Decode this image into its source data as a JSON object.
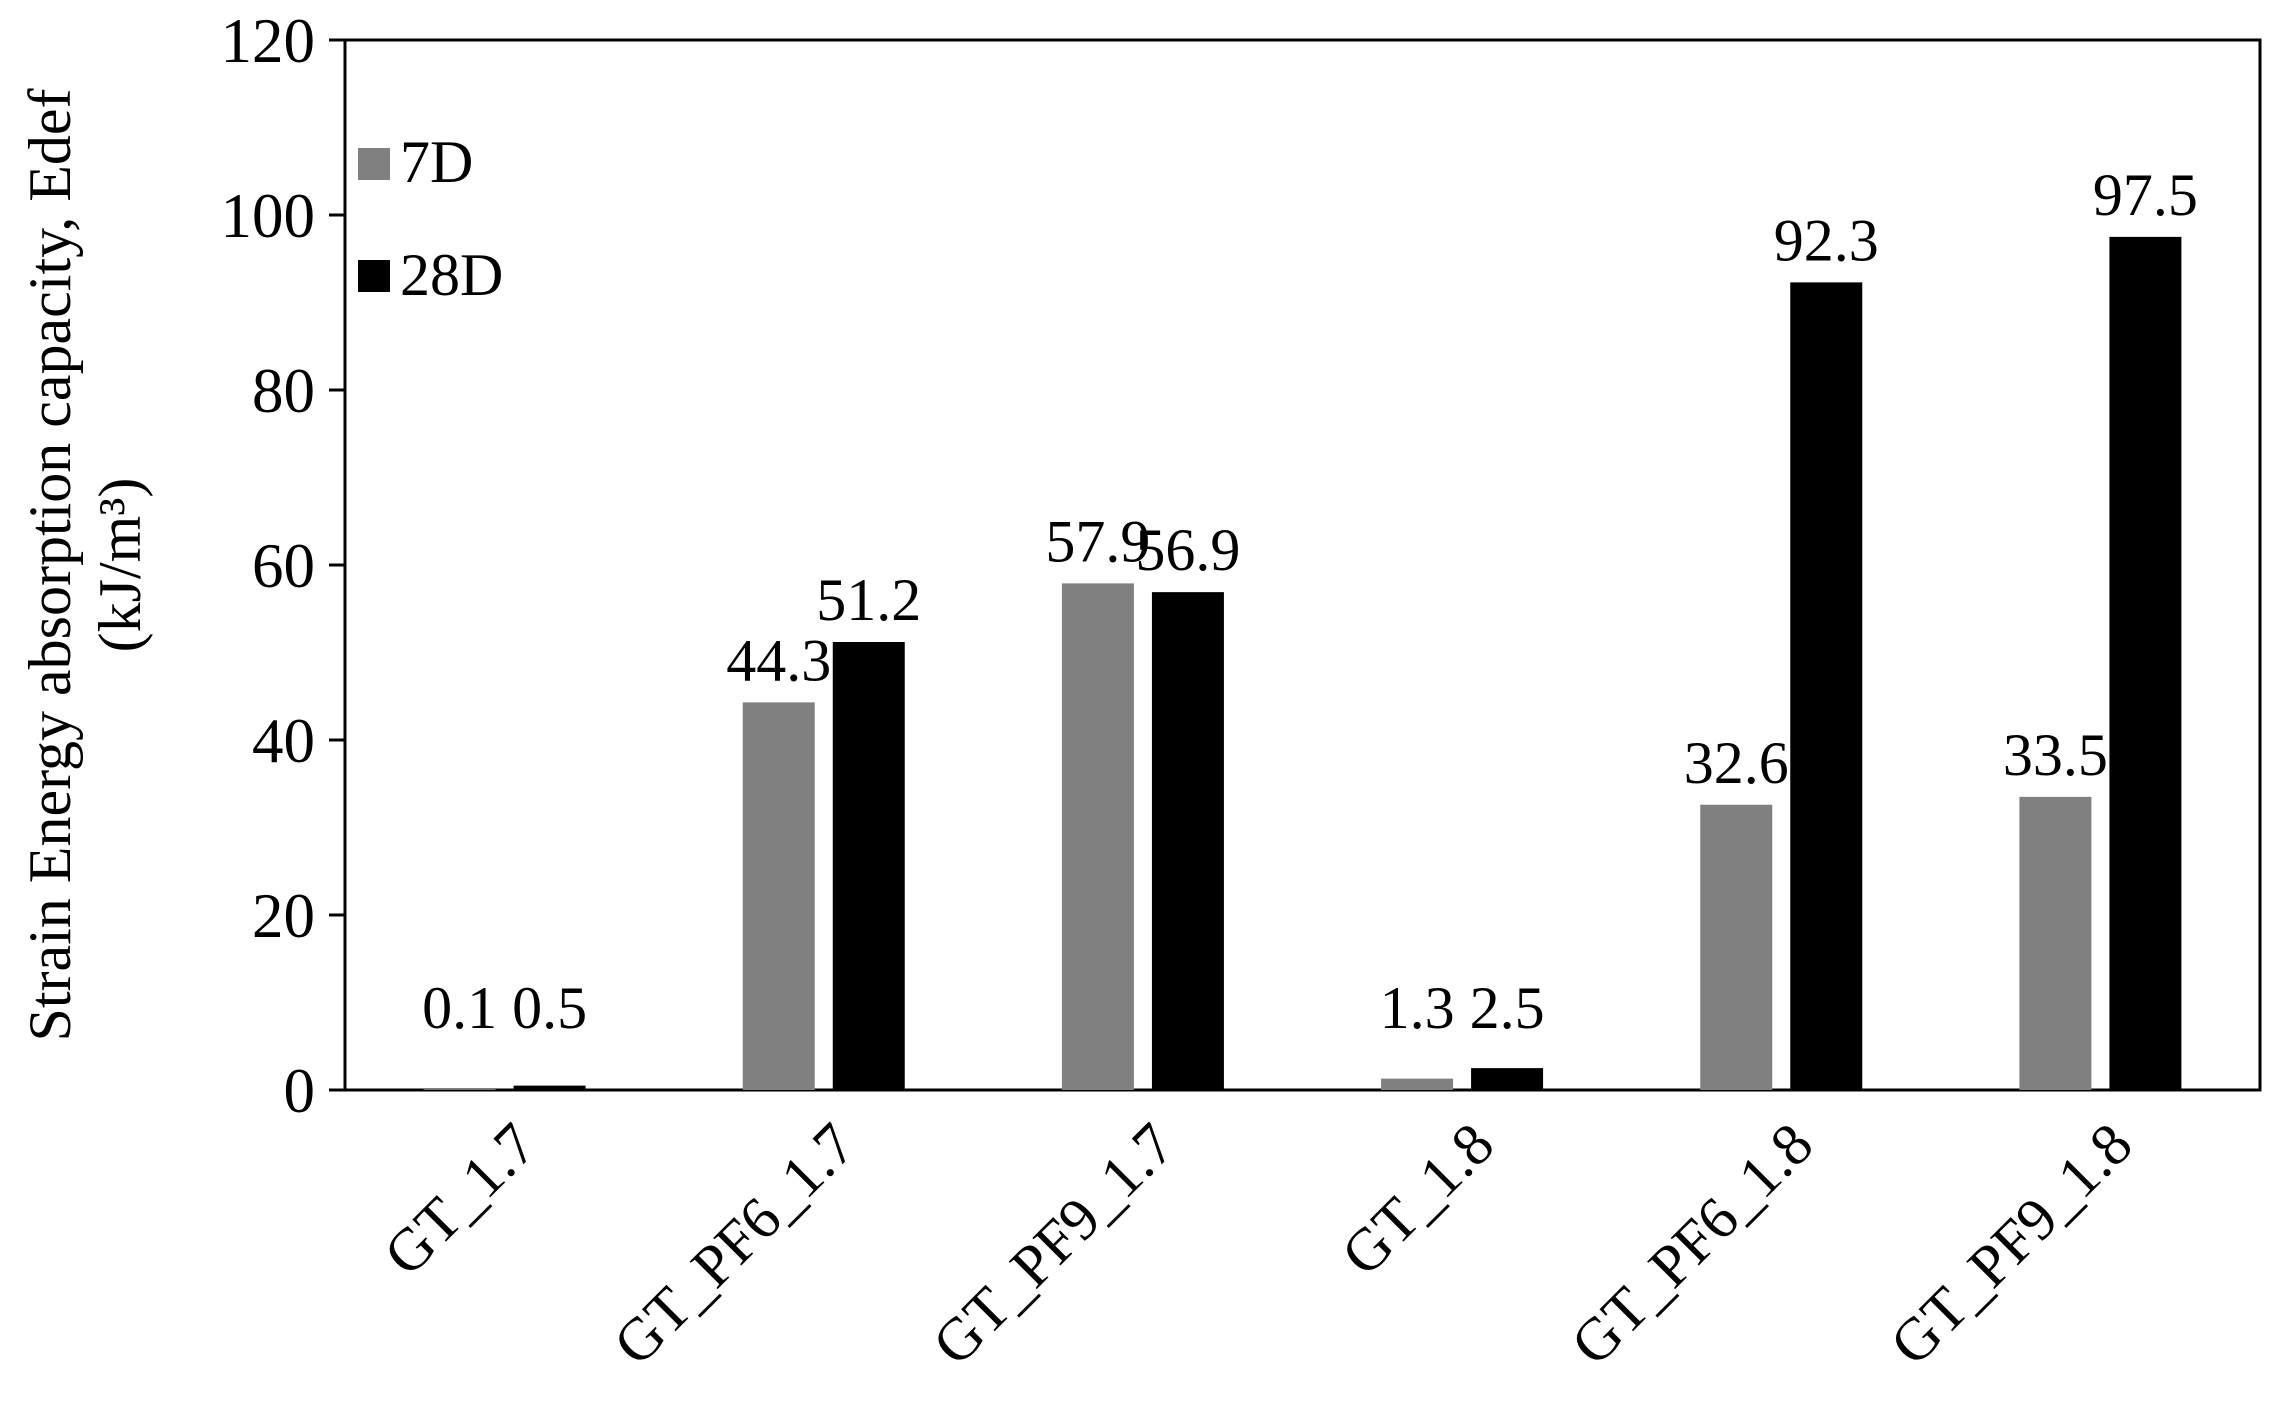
{
  "chart_data": {
    "type": "bar",
    "title": "",
    "xlabel": "",
    "ylabel": "Strain Energy absorption capacity, Edef",
    "ylabel_unit": "(kJ/m³)",
    "categories": [
      "GT_1.7",
      "GT_PF6_1.7",
      "GT_PF9_1.7",
      "GT_1.8",
      "GT_PF6_1.8",
      "GT_PF9_1.8"
    ],
    "series": [
      {
        "name": "7D",
        "color": "#808080",
        "values": [
          0.1,
          44.3,
          57.9,
          1.3,
          32.6,
          33.5
        ]
      },
      {
        "name": "28D",
        "color": "#000000",
        "values": [
          0.5,
          51.2,
          56.9,
          2.5,
          92.3,
          97.5
        ]
      }
    ],
    "data_labels": [
      [
        "0.1",
        "44.3",
        "57.9",
        "1.3",
        "32.6",
        "33.5"
      ],
      [
        "0.5",
        "51.2",
        "56.9",
        "2.5",
        "92.3",
        "97.5"
      ]
    ],
    "ylim": [
      0,
      120
    ],
    "yticks": [
      "0",
      "20",
      "40",
      "60",
      "80",
      "100",
      "120"
    ],
    "grid": false,
    "legend_position": "top-left inside"
  }
}
